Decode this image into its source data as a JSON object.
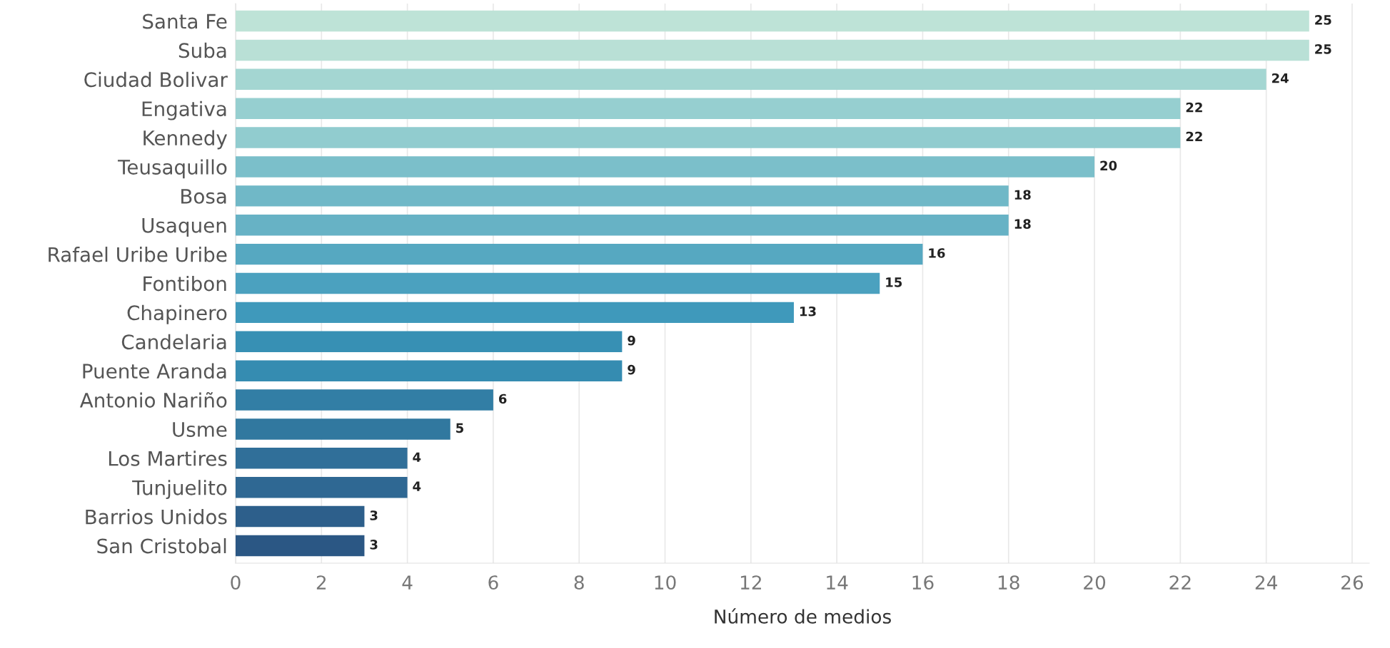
{
  "chart_data": {
    "type": "bar",
    "orientation": "horizontal",
    "xlabel": "Número de medios",
    "categories": [
      "Santa Fe",
      "Suba",
      "Ciudad Bolivar",
      "Engativa",
      "Kennedy",
      "Teusaquillo",
      "Bosa",
      "Usaquen",
      "Rafael Uribe Uribe",
      "Fontibon",
      "Chapinero",
      "Candelaria",
      "Puente Aranda",
      "Antonio Nariño",
      "Usme",
      "Los Martires",
      "Tunjuelito",
      "Barrios Unidos",
      "San Cristobal"
    ],
    "values": [
      25,
      25,
      24,
      22,
      22,
      20,
      18,
      18,
      16,
      15,
      13,
      9,
      9,
      6,
      5,
      4,
      4,
      3,
      3
    ],
    "colors": [
      "#bee3d7",
      "#b9e0d6",
      "#a4d6d2",
      "#96cfd0",
      "#91cccf",
      "#7bbfca",
      "#70b8c7",
      "#67b2c5",
      "#56a8c1",
      "#4ba1bf",
      "#3f99bb",
      "#3790b4",
      "#358cb1",
      "#327ea5",
      "#31789f",
      "#306f99",
      "#2f6893",
      "#2d5f8b",
      "#2b5784"
    ],
    "xlim": [
      0,
      26.4
    ],
    "xticks": [
      0,
      2,
      4,
      6,
      8,
      10,
      12,
      14,
      16,
      18,
      20,
      22,
      24,
      26
    ],
    "grid": "x",
    "data_labels": true
  }
}
